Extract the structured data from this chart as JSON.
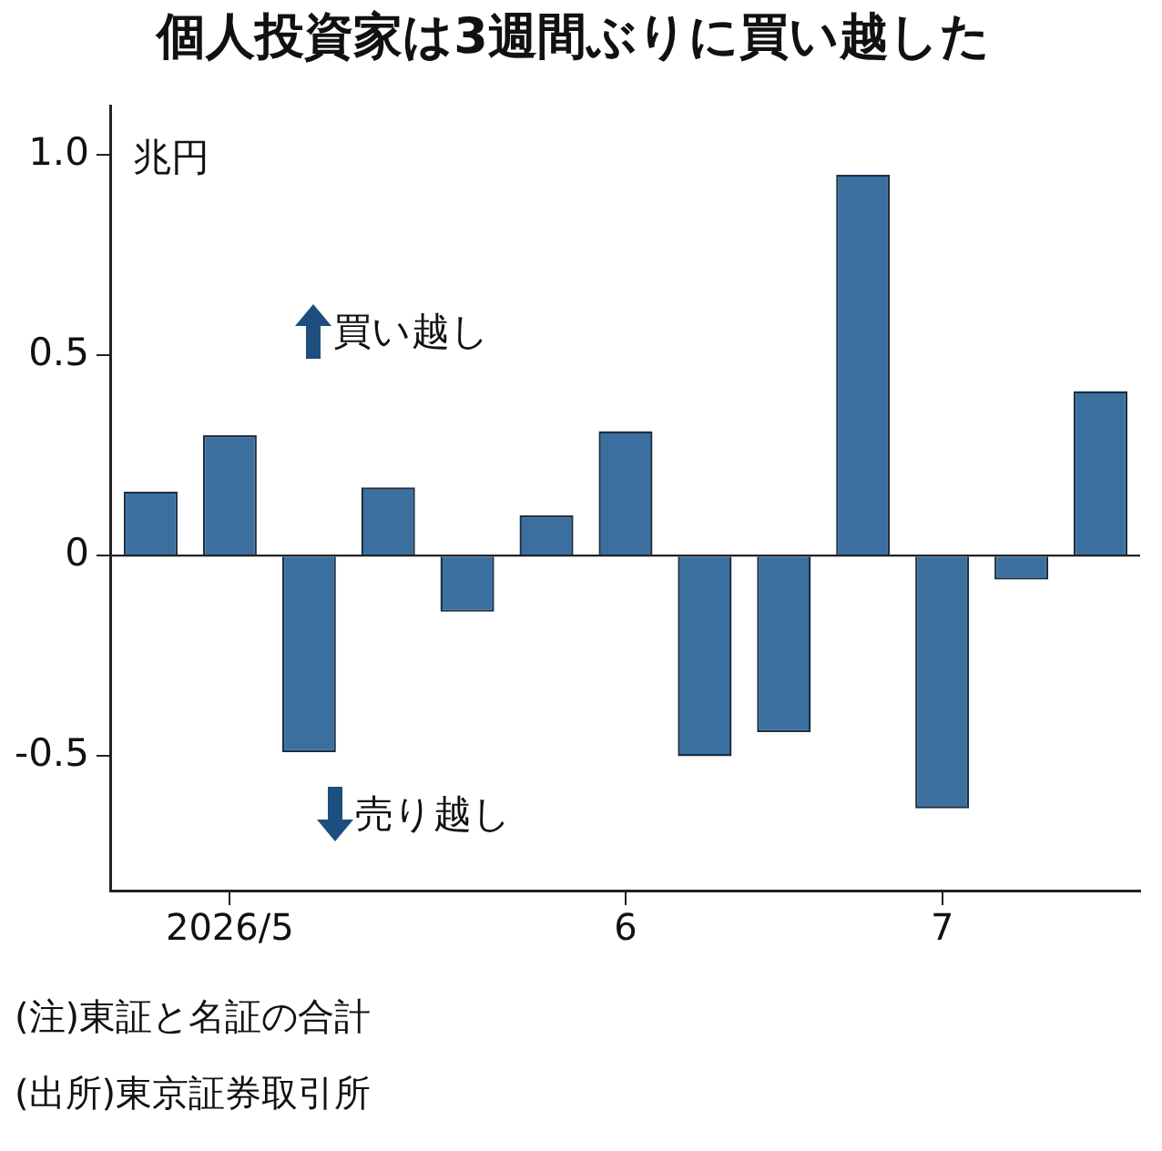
{
  "chart_data": {
    "type": "bar",
    "title": "個人投資家は3週間ぶりに買い越した",
    "ylabel": "兆円",
    "categories": [
      null,
      "2026/5",
      null,
      null,
      null,
      null,
      "6",
      null,
      null,
      null,
      "7",
      null,
      null
    ],
    "values": [
      0.16,
      0.3,
      -0.49,
      0.17,
      -0.14,
      0.1,
      0.31,
      -0.5,
      -0.44,
      0.95,
      -0.63,
      -0.06,
      0.41
    ],
    "color": "#3b6fa0",
    "ylim": [
      -0.835,
      1.12
    ],
    "yticks": [
      {
        "value": -0.5,
        "label": "-0.5"
      },
      0,
      {
        "value": 0.5,
        "label": "0.5"
      },
      {
        "value": 1.0,
        "label": "1.0"
      }
    ],
    "grid": false,
    "ref_lines": [
      {
        "axis": "y",
        "value": 0
      }
    ],
    "annotations": [
      "買い越し",
      "売り越し",
      "(注)東証と名証の合計",
      "(出所)東京証券取引所"
    ]
  }
}
